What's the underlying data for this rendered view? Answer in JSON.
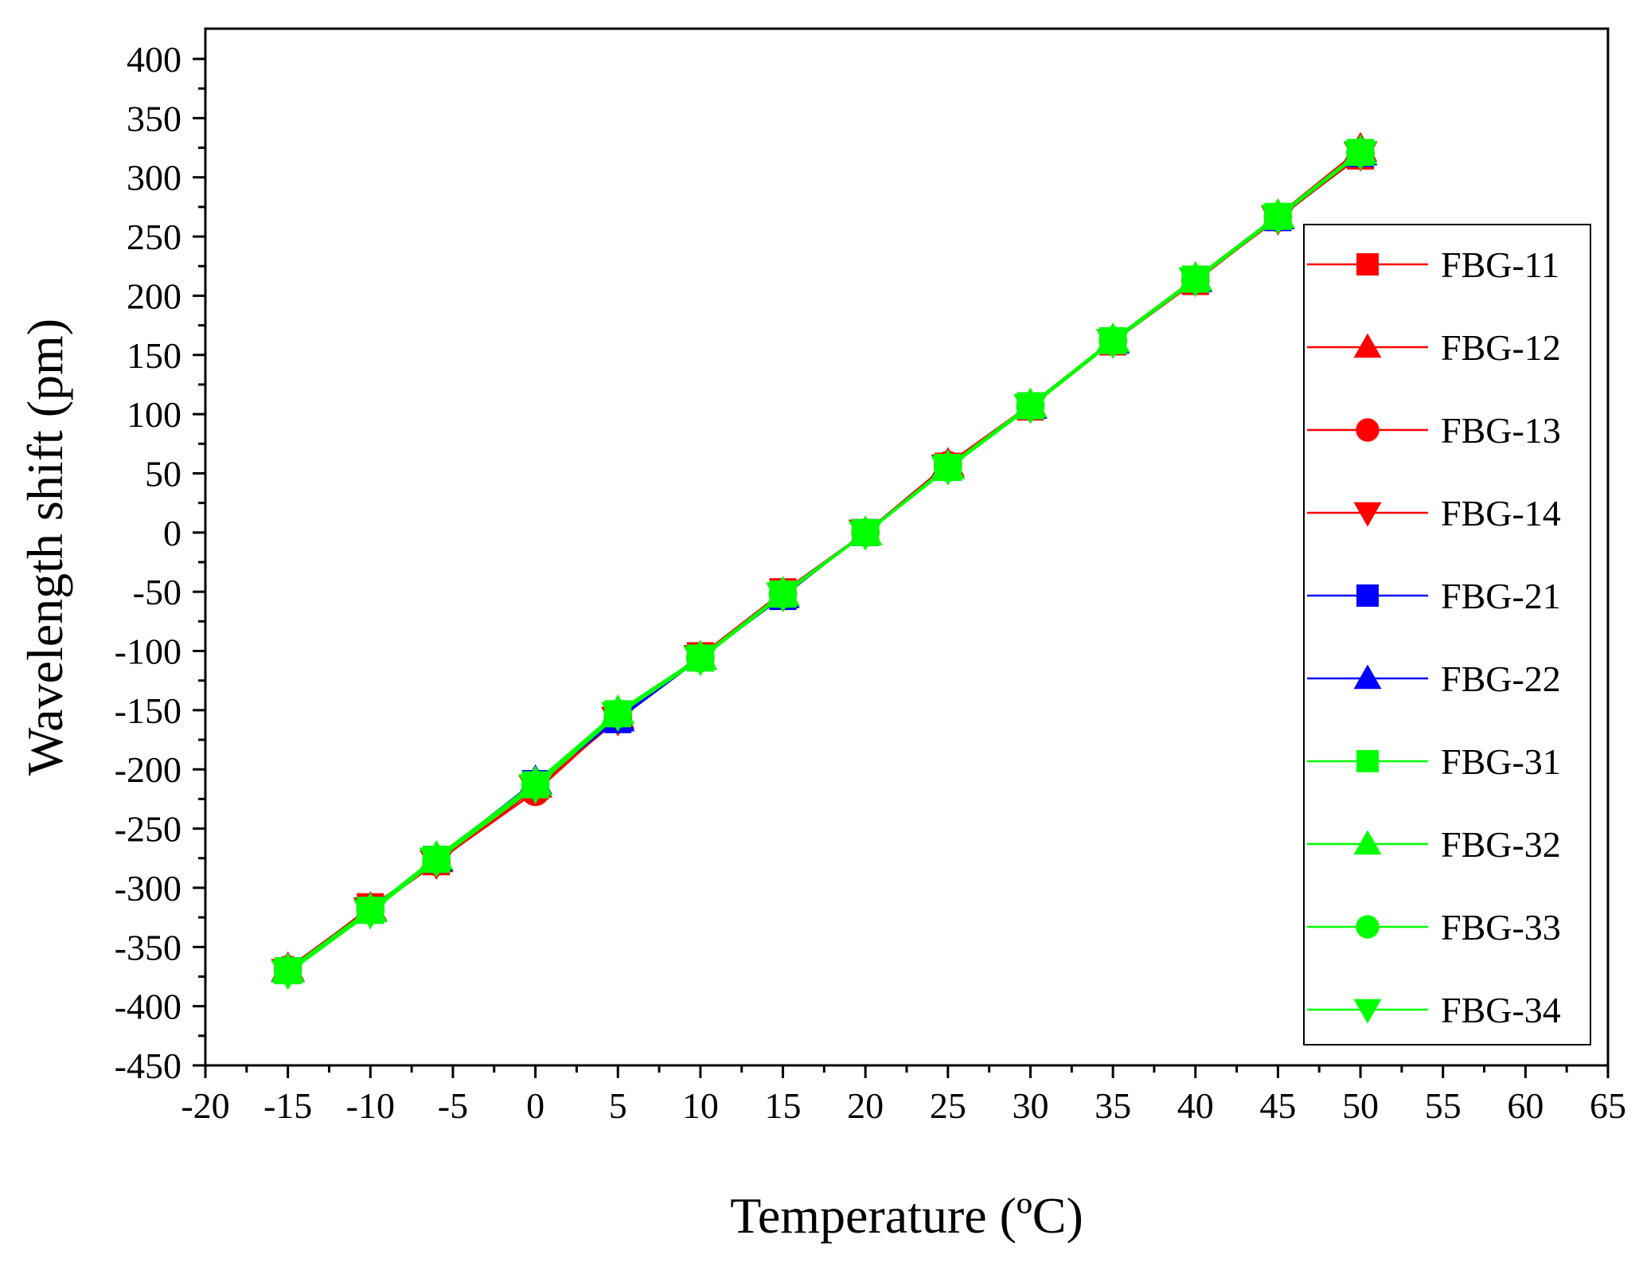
{
  "chart_data": {
    "type": "line",
    "title": "",
    "xlabel": "Temperature (ºC)",
    "ylabel": "Wavelength shift (pm)",
    "xlim": [
      -20,
      65
    ],
    "ylim": [
      -450,
      420
    ],
    "xticks": [
      -20,
      -15,
      -10,
      -5,
      0,
      5,
      10,
      15,
      20,
      25,
      30,
      35,
      40,
      45,
      50,
      55,
      60,
      65
    ],
    "yticks": [
      -450,
      -400,
      -350,
      -300,
      -250,
      -200,
      -150,
      -100,
      -50,
      0,
      50,
      100,
      150,
      200,
      250,
      300,
      350,
      400
    ],
    "grid": false,
    "legend_position": "right",
    "x": [
      -15,
      -10,
      -6,
      0,
      5,
      10,
      15,
      20,
      25,
      30,
      35,
      40,
      45,
      50
    ],
    "series": [
      {
        "name": "FBG-11",
        "color": "#ff0000",
        "marker": "square",
        "values": [
          -370,
          -316,
          -278,
          -214,
          -154,
          -104,
          -50,
          0,
          56,
          106,
          161,
          212,
          266,
          318
        ]
      },
      {
        "name": "FBG-12",
        "color": "#ff0000",
        "marker": "triangle-up",
        "values": [
          -368,
          -317,
          -276,
          -213,
          -155,
          -105,
          -51,
          0,
          58,
          108,
          163,
          215,
          268,
          324
        ]
      },
      {
        "name": "FBG-13",
        "color": "#ff0000",
        "marker": "circle",
        "values": [
          -369,
          -318,
          -278,
          -219,
          -156,
          -106,
          -52,
          0,
          57,
          107,
          162,
          213,
          266,
          320
        ]
      },
      {
        "name": "FBG-14",
        "color": "#ff0000",
        "marker": "triangle-down",
        "values": [
          -371,
          -319,
          -279,
          -216,
          -158,
          -106,
          -53,
          0,
          55,
          106,
          161,
          213,
          265,
          319
        ]
      },
      {
        "name": "FBG-21",
        "color": "#0000ff",
        "marker": "square",
        "values": [
          -370,
          -319,
          -276,
          -212,
          -158,
          -106,
          -54,
          0,
          55,
          107,
          162,
          214,
          266,
          320
        ]
      },
      {
        "name": "FBG-22",
        "color": "#0000ff",
        "marker": "triangle-up",
        "values": [
          -369,
          -318,
          -275,
          -210,
          -157,
          -105,
          -53,
          0,
          56,
          107,
          162,
          214,
          267,
          321
        ]
      },
      {
        "name": "FBG-31",
        "color": "#00ff00",
        "marker": "square",
        "values": [
          -370,
          -319,
          -276,
          -213,
          -153,
          -106,
          -52,
          0,
          55,
          107,
          162,
          214,
          267,
          321
        ]
      },
      {
        "name": "FBG-32",
        "color": "#00ff00",
        "marker": "triangle-up",
        "values": [
          -369,
          -318,
          -274,
          -211,
          -151,
          -105,
          -51,
          0,
          56,
          108,
          163,
          215,
          268,
          322
        ]
      },
      {
        "name": "FBG-33",
        "color": "#00ff00",
        "marker": "circle",
        "values": [
          -370,
          -319,
          -276,
          -213,
          -153,
          -106,
          -52,
          0,
          55,
          107,
          162,
          214,
          267,
          321
        ]
      },
      {
        "name": "FBG-34",
        "color": "#00ff00",
        "marker": "triangle-down",
        "values": [
          -372,
          -321,
          -277,
          -215,
          -154,
          -107,
          -53,
          -1,
          54,
          106,
          161,
          213,
          266,
          320
        ]
      }
    ]
  }
}
